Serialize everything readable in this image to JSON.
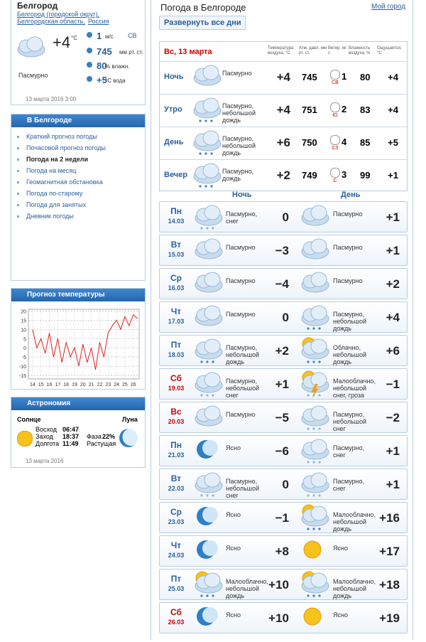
{
  "current": {
    "city": "Белгород",
    "links": [
      "Белгород (городской округ),",
      "Белгородская область,",
      "Россия"
    ],
    "temp": "+4",
    "unit": "°C",
    "wind": "1",
    "wind_unit": "м/с",
    "wind_dir": "СВ",
    "pressure": "745",
    "pressure_unit": "мм рт. ст.",
    "humidity": "80",
    "humidity_unit": "% влажн.",
    "water": "+5",
    "water_unit": "°С вода",
    "condition": "Пасмурно",
    "date": "13 марта 2016 3:00"
  },
  "menu": {
    "title": "В Белгороде",
    "items": [
      "Краткий прогноз погоды",
      "Почасовой прогноз погоды",
      "Погода на 2 недели",
      "Погода на месяц",
      "Геомагнитная обстановка",
      "Погода по-старому",
      "Погода для занятых",
      "Дневник погоды"
    ]
  },
  "temp_chart": {
    "type": "line",
    "title": "Прогноз температуры",
    "color": "#e02020",
    "x": [
      14,
      14.5,
      15,
      15.5,
      16,
      16.5,
      17,
      17.5,
      18,
      18.5,
      19,
      19.5,
      20,
      20.5,
      21,
      21.5,
      22,
      22.5,
      23,
      23.5,
      24,
      24.5,
      25,
      25.5,
      26,
      26.5
    ],
    "values": [
      10,
      0,
      5,
      -3,
      8,
      -5,
      5,
      -8,
      3,
      -5,
      0,
      -10,
      2,
      -8,
      0,
      -12,
      3,
      -5,
      8,
      12,
      15,
      10,
      17,
      12,
      18,
      16
    ],
    "xlim": [
      13.5,
      26.7
    ],
    "ylim": [
      -17,
      21
    ],
    "xticks": [
      14,
      15,
      16,
      17,
      18,
      19,
      20,
      21,
      22,
      23,
      24,
      25,
      26
    ],
    "yticks": [
      20,
      15,
      10,
      5,
      0,
      -5,
      -10,
      -15
    ],
    "grid": true
  },
  "astronomy": {
    "title": "Астрономия",
    "sun": "Солнце",
    "moon": "Луна",
    "rows": [
      [
        "Восход",
        "06:47"
      ],
      [
        "Заход",
        "18:37"
      ],
      [
        "Долгота",
        "11:49"
      ]
    ],
    "phase_label": "Фаза",
    "phase": "22%",
    "phase_name": "Растущая",
    "date": "13 марта 2016"
  },
  "header": {
    "title": "Погода в Белгороде",
    "my_city": "Мой город",
    "expand": "Развернуть все дни"
  },
  "today": {
    "date": "Вс, 13 марта",
    "columns": [
      "Температура воздуха, °C",
      "Атм. давл. мм рт. ст.",
      "Ветер, м/с",
      "Влажность воздуха, %",
      "Ощущается, °C"
    ],
    "rows": [
      {
        "part": "Ночь",
        "condition": "Пасмурно",
        "temp": "+4",
        "pressure": "745",
        "wind_dir": "СВ",
        "wind": "1",
        "humidity": "80",
        "feels": "+4"
      },
      {
        "part": "Утро",
        "condition": "Пасмурно, небольшой дождь",
        "temp": "+4",
        "pressure": "751",
        "wind_dir": "Ю",
        "wind": "2",
        "humidity": "83",
        "feels": "+4"
      },
      {
        "part": "День",
        "condition": "Пасмурно, небольшой дождь",
        "temp": "+6",
        "pressure": "750",
        "wind_dir": "СЗ",
        "wind": "4",
        "humidity": "85",
        "feels": "+5"
      },
      {
        "part": "Вечер",
        "condition": "Пасмурно, дождь",
        "temp": "+2",
        "pressure": "749",
        "wind_dir": "С",
        "wind": "3",
        "humidity": "99",
        "feels": "+1"
      }
    ]
  },
  "days_header": {
    "night": "Ночь",
    "day": "День"
  },
  "days": [
    {
      "dow": "Пн",
      "date": "14.03",
      "night": "Пасмурно, снег",
      "night_temp": "0",
      "day": "Пасмурно",
      "day_temp": "+1"
    },
    {
      "dow": "Вт",
      "date": "15.03",
      "night": "Пасмурно",
      "night_temp": "−3",
      "day": "Пасмурно",
      "day_temp": "+1"
    },
    {
      "dow": "Ср",
      "date": "16.03",
      "night": "Пасмурно",
      "night_temp": "−4",
      "day": "Пасмурно",
      "day_temp": "+2"
    },
    {
      "dow": "Чт",
      "date": "17.03",
      "night": "Пасмурно",
      "night_temp": "0",
      "day": "Пасмурно, небольшой дождь",
      "day_temp": "+4"
    },
    {
      "dow": "Пт",
      "date": "18.03",
      "night": "Пасмурно, небольшой дождь",
      "night_temp": "+2",
      "day": "Облачно, небольшой дождь",
      "day_temp": "+6"
    },
    {
      "dow": "Сб",
      "date": "19.03",
      "night": "Пасмурно, небольшой снег",
      "night_temp": "+1",
      "day": "Малооблачно, небольшой снег, гроза",
      "day_temp": "−1",
      "weekend": true
    },
    {
      "dow": "Вс",
      "date": "20.03",
      "night": "Пасмурно",
      "night_temp": "−5",
      "day": "Пасмурно, небольшой снег",
      "day_temp": "−2",
      "weekend": true
    },
    {
      "dow": "Пн",
      "date": "21.03",
      "night": "Ясно",
      "night_temp": "−6",
      "day": "Пасмурно, снег",
      "day_temp": "+1"
    },
    {
      "dow": "Вт",
      "date": "22.03",
      "night": "Пасмурно, небольшой снег",
      "night_temp": "0",
      "day": "Пасмурно, снег",
      "day_temp": "+1"
    },
    {
      "dow": "Ср",
      "date": "23.03",
      "night": "Ясно",
      "night_temp": "−1",
      "day": "Малооблачно, небольшой дождь",
      "day_temp": "+16"
    },
    {
      "dow": "Чт",
      "date": "24.03",
      "night": "Ясно",
      "night_temp": "+8",
      "day": "Ясно",
      "day_temp": "+17"
    },
    {
      "dow": "Пт",
      "date": "25.03",
      "night": "Малооблачно, небольшой дождь",
      "night_temp": "+10",
      "day": "Малооблачно, небольшой дождь",
      "day_temp": "+18"
    },
    {
      "dow": "Сб",
      "date": "26.03",
      "night": "Ясно",
      "night_temp": "+10",
      "day": "Ясно",
      "day_temp": "+19",
      "weekend": true
    }
  ]
}
